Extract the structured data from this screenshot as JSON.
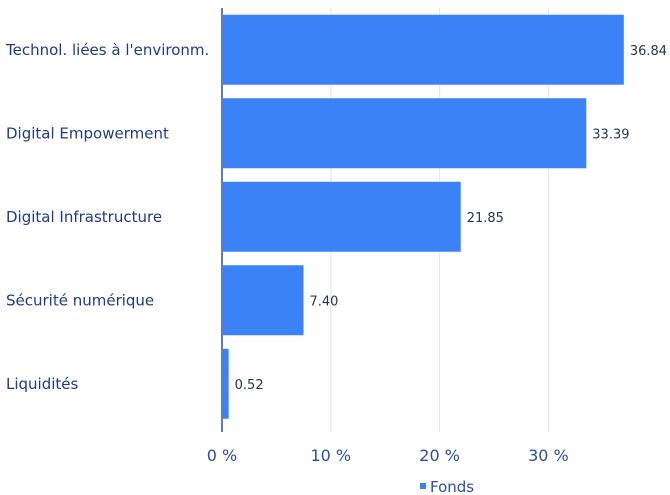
{
  "chart_data": {
    "type": "bar",
    "orientation": "horizontal",
    "categories": [
      "Technol. liées à l'environm.",
      "Digital Empowerment",
      "Digital Infrastructure",
      "Sécurité numérique",
      "Liquidités"
    ],
    "series": [
      {
        "name": "Fonds",
        "values": [
          36.84,
          33.39,
          21.85,
          7.4,
          0.52
        ],
        "value_labels": [
          "36.84",
          "33.39",
          "21.85",
          "7.40",
          "0.52"
        ],
        "color": "#3b82f6"
      }
    ],
    "xlim": [
      0,
      40
    ],
    "x_ticks": [
      0,
      10,
      20,
      30
    ],
    "x_tick_labels": [
      "0 %",
      "10 %",
      "20 %",
      "30 %"
    ],
    "grid": true,
    "legend": {
      "placement": "bottom-center",
      "entries": [
        "Fonds"
      ]
    }
  }
}
